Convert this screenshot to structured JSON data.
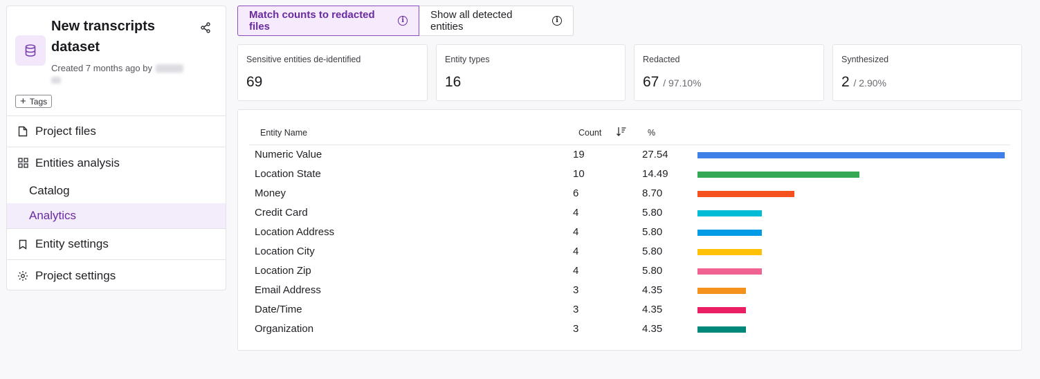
{
  "dataset": {
    "title": "New transcripts dataset",
    "created": "Created 7 months ago by",
    "tags_label": "Tags"
  },
  "nav": {
    "project_files": "Project files",
    "entities_analysis": "Entities analysis",
    "catalog": "Catalog",
    "analytics": "Analytics",
    "entity_settings": "Entity settings",
    "project_settings": "Project settings"
  },
  "toggle": {
    "active_label": "Match counts to redacted files",
    "inactive_label": "Show all detected entities"
  },
  "stats": {
    "sensitive": {
      "label": "Sensitive entities de-identified",
      "value": "69"
    },
    "types": {
      "label": "Entity types",
      "value": "16"
    },
    "redacted": {
      "label": "Redacted",
      "value": "67",
      "sub": "/ 97.10%"
    },
    "synthesized": {
      "label": "Synthesized",
      "value": "2",
      "sub": "/ 2.90%"
    }
  },
  "table": {
    "headers": {
      "name": "Entity Name",
      "count": "Count",
      "pct": "%"
    },
    "rows": [
      {
        "name": "Numeric Value",
        "count": "19",
        "pct": "27.54",
        "color": "#3f7fe8"
      },
      {
        "name": "Location State",
        "count": "10",
        "pct": "14.49",
        "color": "#34a853"
      },
      {
        "name": "Money",
        "count": "6",
        "pct": "8.70",
        "color": "#f4511e"
      },
      {
        "name": "Credit Card",
        "count": "4",
        "pct": "5.80",
        "color": "#00bcd4"
      },
      {
        "name": "Location Address",
        "count": "4",
        "pct": "5.80",
        "color": "#039be5"
      },
      {
        "name": "Location City",
        "count": "4",
        "pct": "5.80",
        "color": "#ffc107"
      },
      {
        "name": "Location Zip",
        "count": "4",
        "pct": "5.80",
        "color": "#f06292"
      },
      {
        "name": "Email Address",
        "count": "3",
        "pct": "4.35",
        "color": "#f4921e"
      },
      {
        "name": "Date/Time",
        "count": "3",
        "pct": "4.35",
        "color": "#e91e63"
      },
      {
        "name": "Organization",
        "count": "3",
        "pct": "4.35",
        "color": "#00897b"
      }
    ]
  }
}
